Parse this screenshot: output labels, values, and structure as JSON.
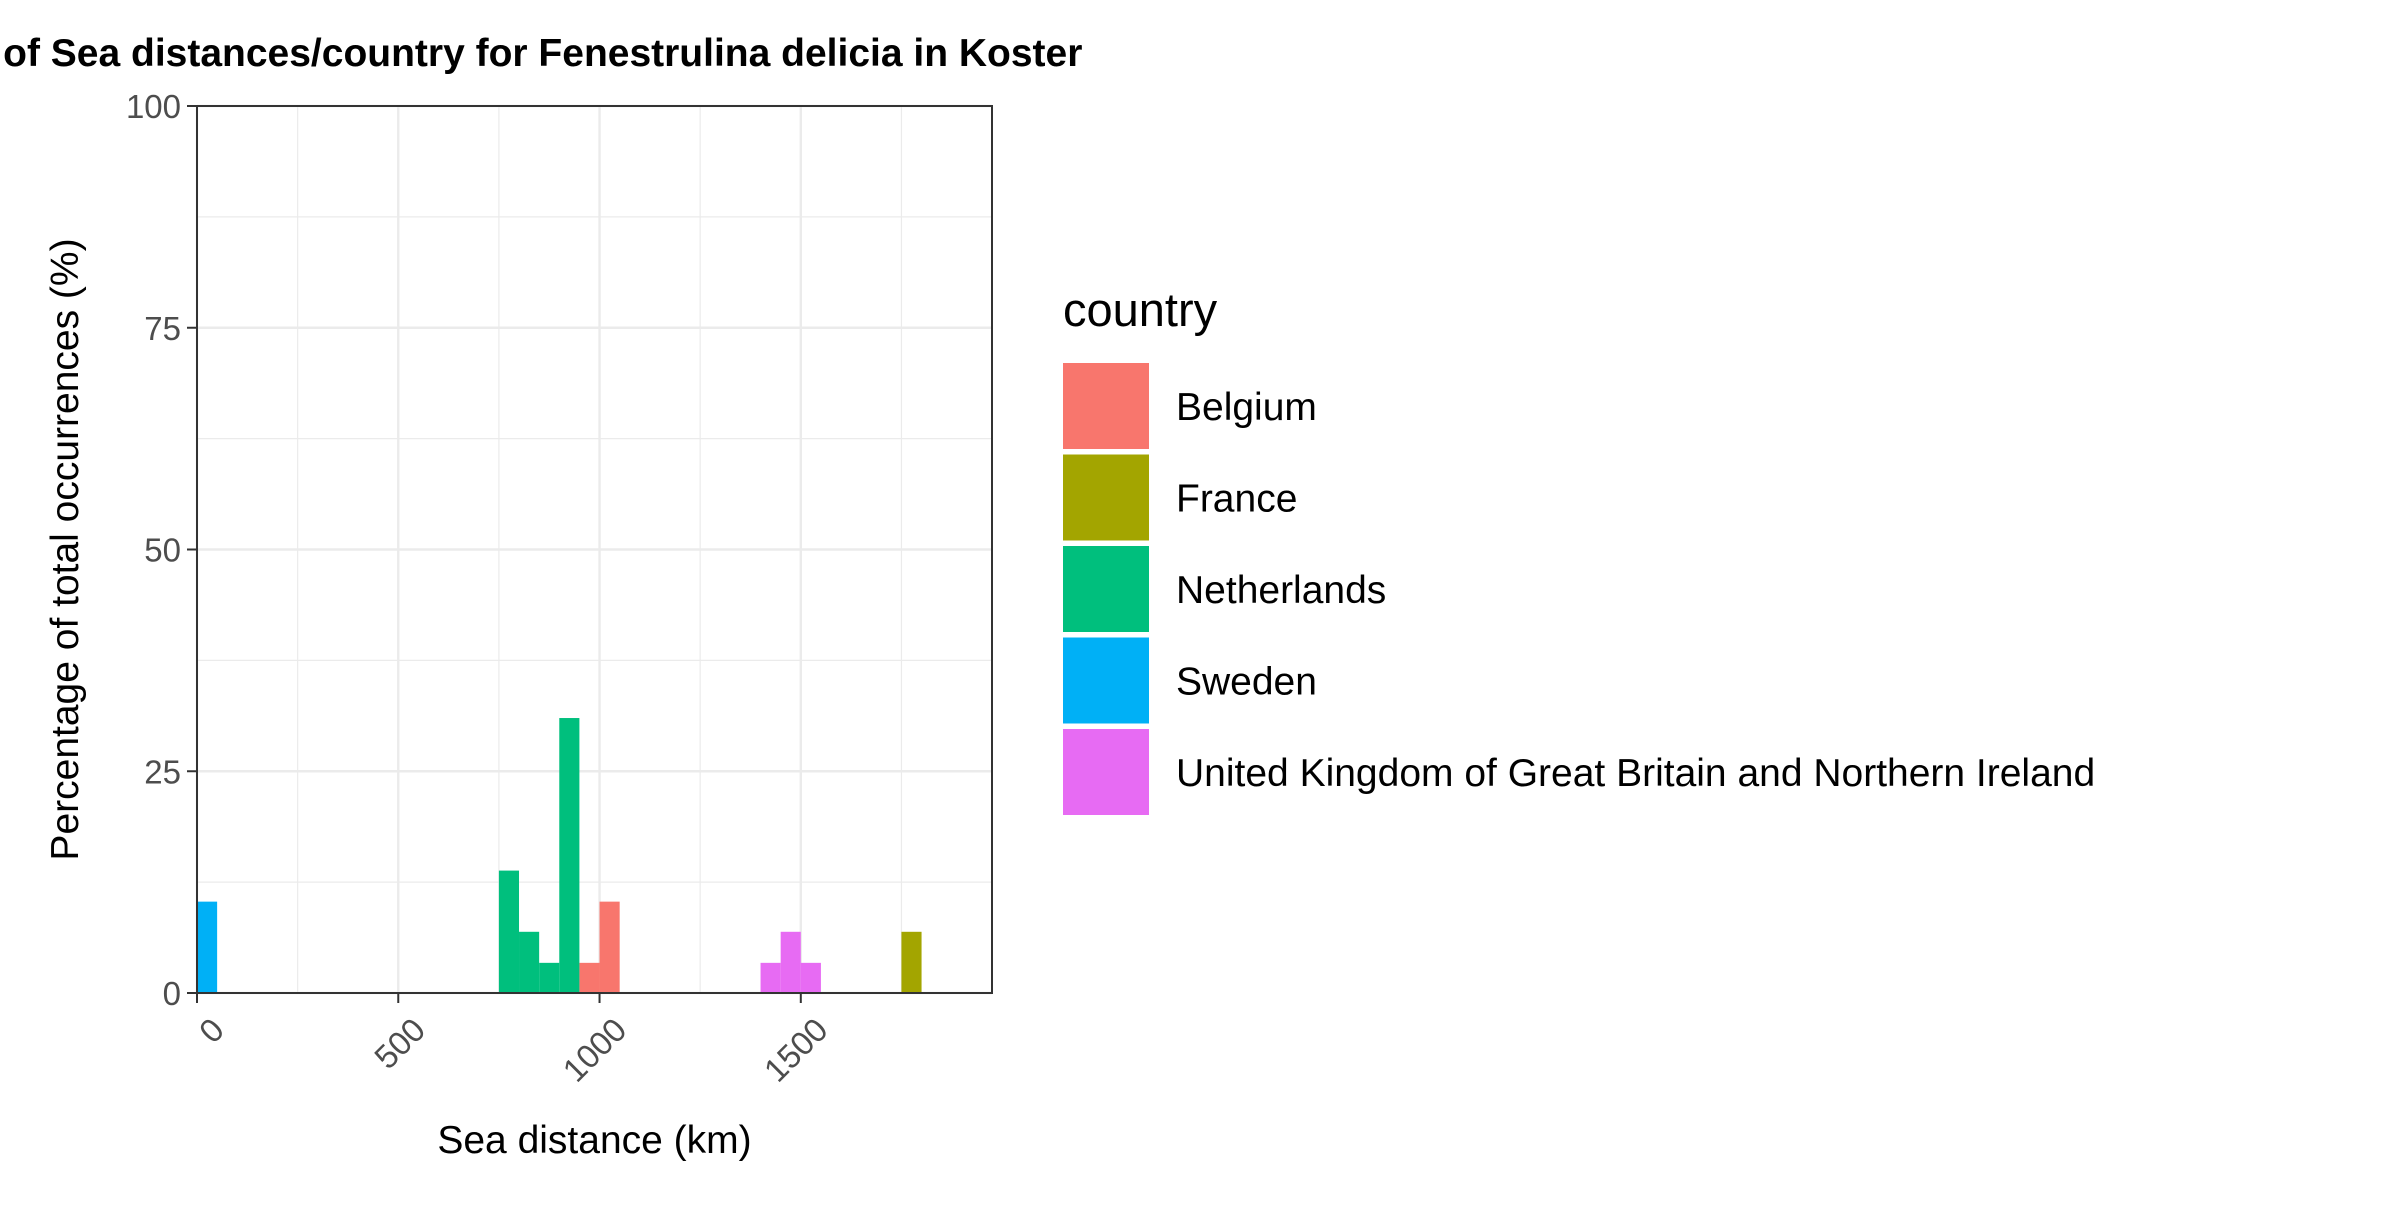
{
  "chart_data": {
    "type": "bar",
    "title": "Histogram with percentages of Sea distances/country for Fenestrulina delicia in Koster",
    "xlabel": "Sea distance (km)",
    "ylabel": "Percentage of total occurrences (%)",
    "xlim": [
      0,
      1975
    ],
    "ylim": [
      0,
      100
    ],
    "x_ticks": [
      {
        "value": 0,
        "label": "0"
      },
      {
        "value": 500,
        "label": "500"
      },
      {
        "value": 1000,
        "label": "1000"
      },
      {
        "value": 1500,
        "label": "1500"
      }
    ],
    "y_ticks": [
      {
        "value": 0,
        "label": "0"
      },
      {
        "value": 25,
        "label": "25"
      },
      {
        "value": 50,
        "label": "50"
      },
      {
        "value": 75,
        "label": "75"
      },
      {
        "value": 100,
        "label": "100"
      }
    ],
    "x_minor": [
      250,
      750,
      1250,
      1750
    ],
    "y_minor": [
      12.5,
      37.5,
      62.5,
      87.5
    ],
    "grid": true,
    "bin_width": 50,
    "legend": {
      "title": "country",
      "placement": "right"
    },
    "series": [
      {
        "name": "Belgium",
        "color": "#F8766D",
        "bins": [
          {
            "x0": 950,
            "x1": 1000,
            "bottom": 0,
            "value": 3.4
          },
          {
            "x0": 1000,
            "x1": 1050,
            "bottom": 0,
            "value": 10.3
          }
        ]
      },
      {
        "name": "France",
        "color": "#A3A500",
        "bins": [
          {
            "x0": 1750,
            "x1": 1800,
            "bottom": 0,
            "value": 6.9
          }
        ]
      },
      {
        "name": "Netherlands",
        "color": "#00BF7D",
        "bins": [
          {
            "x0": 750,
            "x1": 800,
            "bottom": 0,
            "value": 13.8
          },
          {
            "x0": 800,
            "x1": 850,
            "bottom": 0,
            "value": 6.9
          },
          {
            "x0": 850,
            "x1": 900,
            "bottom": 0,
            "value": 3.4
          },
          {
            "x0": 900,
            "x1": 950,
            "bottom": 0,
            "value": 31.0
          },
          {
            "x0": 950,
            "x1": 1000,
            "bottom": 3.4,
            "value": 0
          }
        ]
      },
      {
        "name": "Sweden",
        "color": "#00B0F6",
        "bins": [
          {
            "x0": 0,
            "x1": 50,
            "bottom": 0,
            "value": 10.3
          }
        ]
      },
      {
        "name": "United Kingdom of Great Britain and Northern Ireland",
        "color": "#E76BF3",
        "bins": [
          {
            "x0": 1400,
            "x1": 1450,
            "bottom": 0,
            "value": 3.4
          },
          {
            "x0": 1450,
            "x1": 1500,
            "bottom": 0,
            "value": 6.9
          },
          {
            "x0": 1500,
            "x1": 1550,
            "bottom": 0,
            "value": 3.4
          }
        ]
      }
    ]
  }
}
